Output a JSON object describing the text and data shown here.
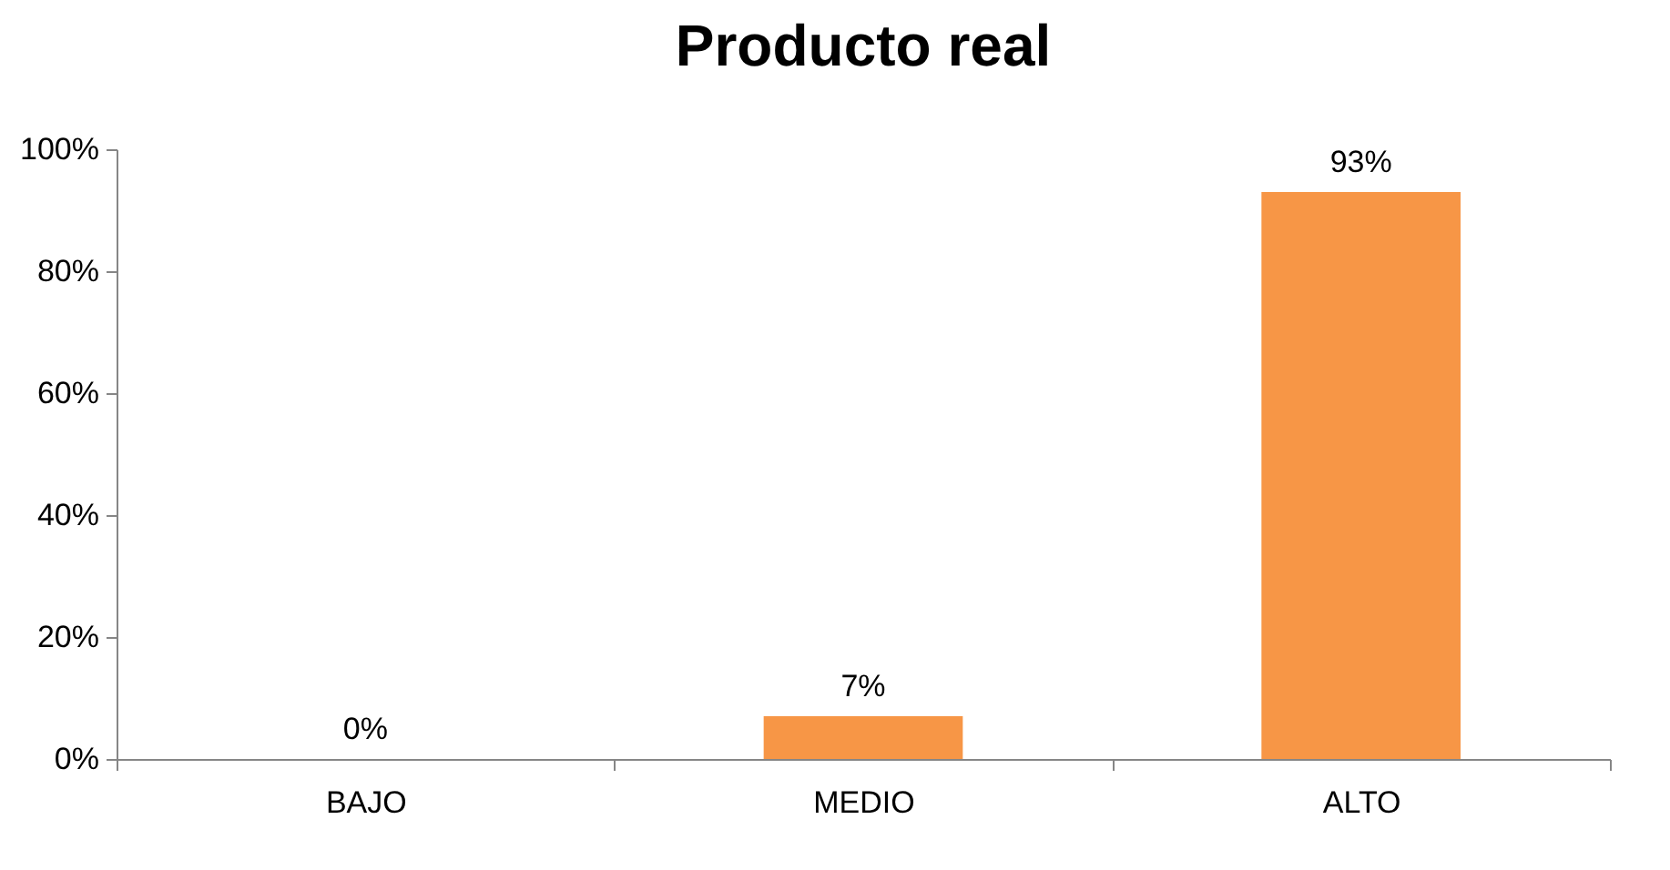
{
  "chart_data": {
    "type": "bar",
    "title": "Producto real",
    "categories": [
      "BAJO",
      "MEDIO",
      "ALTO"
    ],
    "values": [
      0,
      7,
      93
    ],
    "value_labels": [
      "0%",
      "7%",
      "93%"
    ],
    "color": "#f79646",
    "ylim": [
      0,
      100
    ],
    "yticks": [
      {
        "value": 0,
        "label": "0%"
      },
      {
        "value": 20,
        "label": "20%"
      },
      {
        "value": 40,
        "label": "40%"
      },
      {
        "value": 60,
        "label": "60%"
      },
      {
        "value": 80,
        "label": "80%"
      },
      {
        "value": 100,
        "label": "100%"
      }
    ]
  }
}
